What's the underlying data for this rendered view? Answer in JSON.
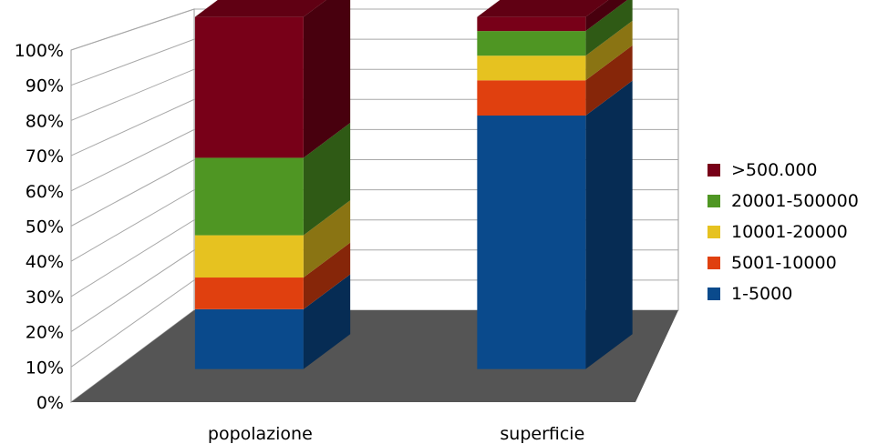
{
  "chart_data": {
    "type": "bar",
    "stacked": true,
    "percent": true,
    "three_d": true,
    "title": "",
    "xlabel": "",
    "ylabel": "",
    "ylim": [
      0,
      100
    ],
    "yticks": [
      "0%",
      "10%",
      "20%",
      "30%",
      "40%",
      "50%",
      "60%",
      "70%",
      "80%",
      "90%",
      "100%"
    ],
    "categories": [
      "popolazione",
      "superficie"
    ],
    "series": [
      {
        "name": "1-5000",
        "color": "#0a4a8c",
        "values": [
          17,
          72
        ]
      },
      {
        "name": "5001-10000",
        "color": "#e0400f",
        "values": [
          9,
          10
        ]
      },
      {
        "name": "10001-20000",
        "color": "#e6c220",
        "values": [
          12,
          7
        ]
      },
      {
        "name": "20001-500000",
        "color": "#4f9623",
        "values": [
          22,
          7
        ]
      },
      {
        "name": ">500.000",
        "color": "#780018",
        "values": [
          40,
          4
        ]
      }
    ],
    "legend_position": "right",
    "grid": true,
    "floor_color": "#555555"
  }
}
